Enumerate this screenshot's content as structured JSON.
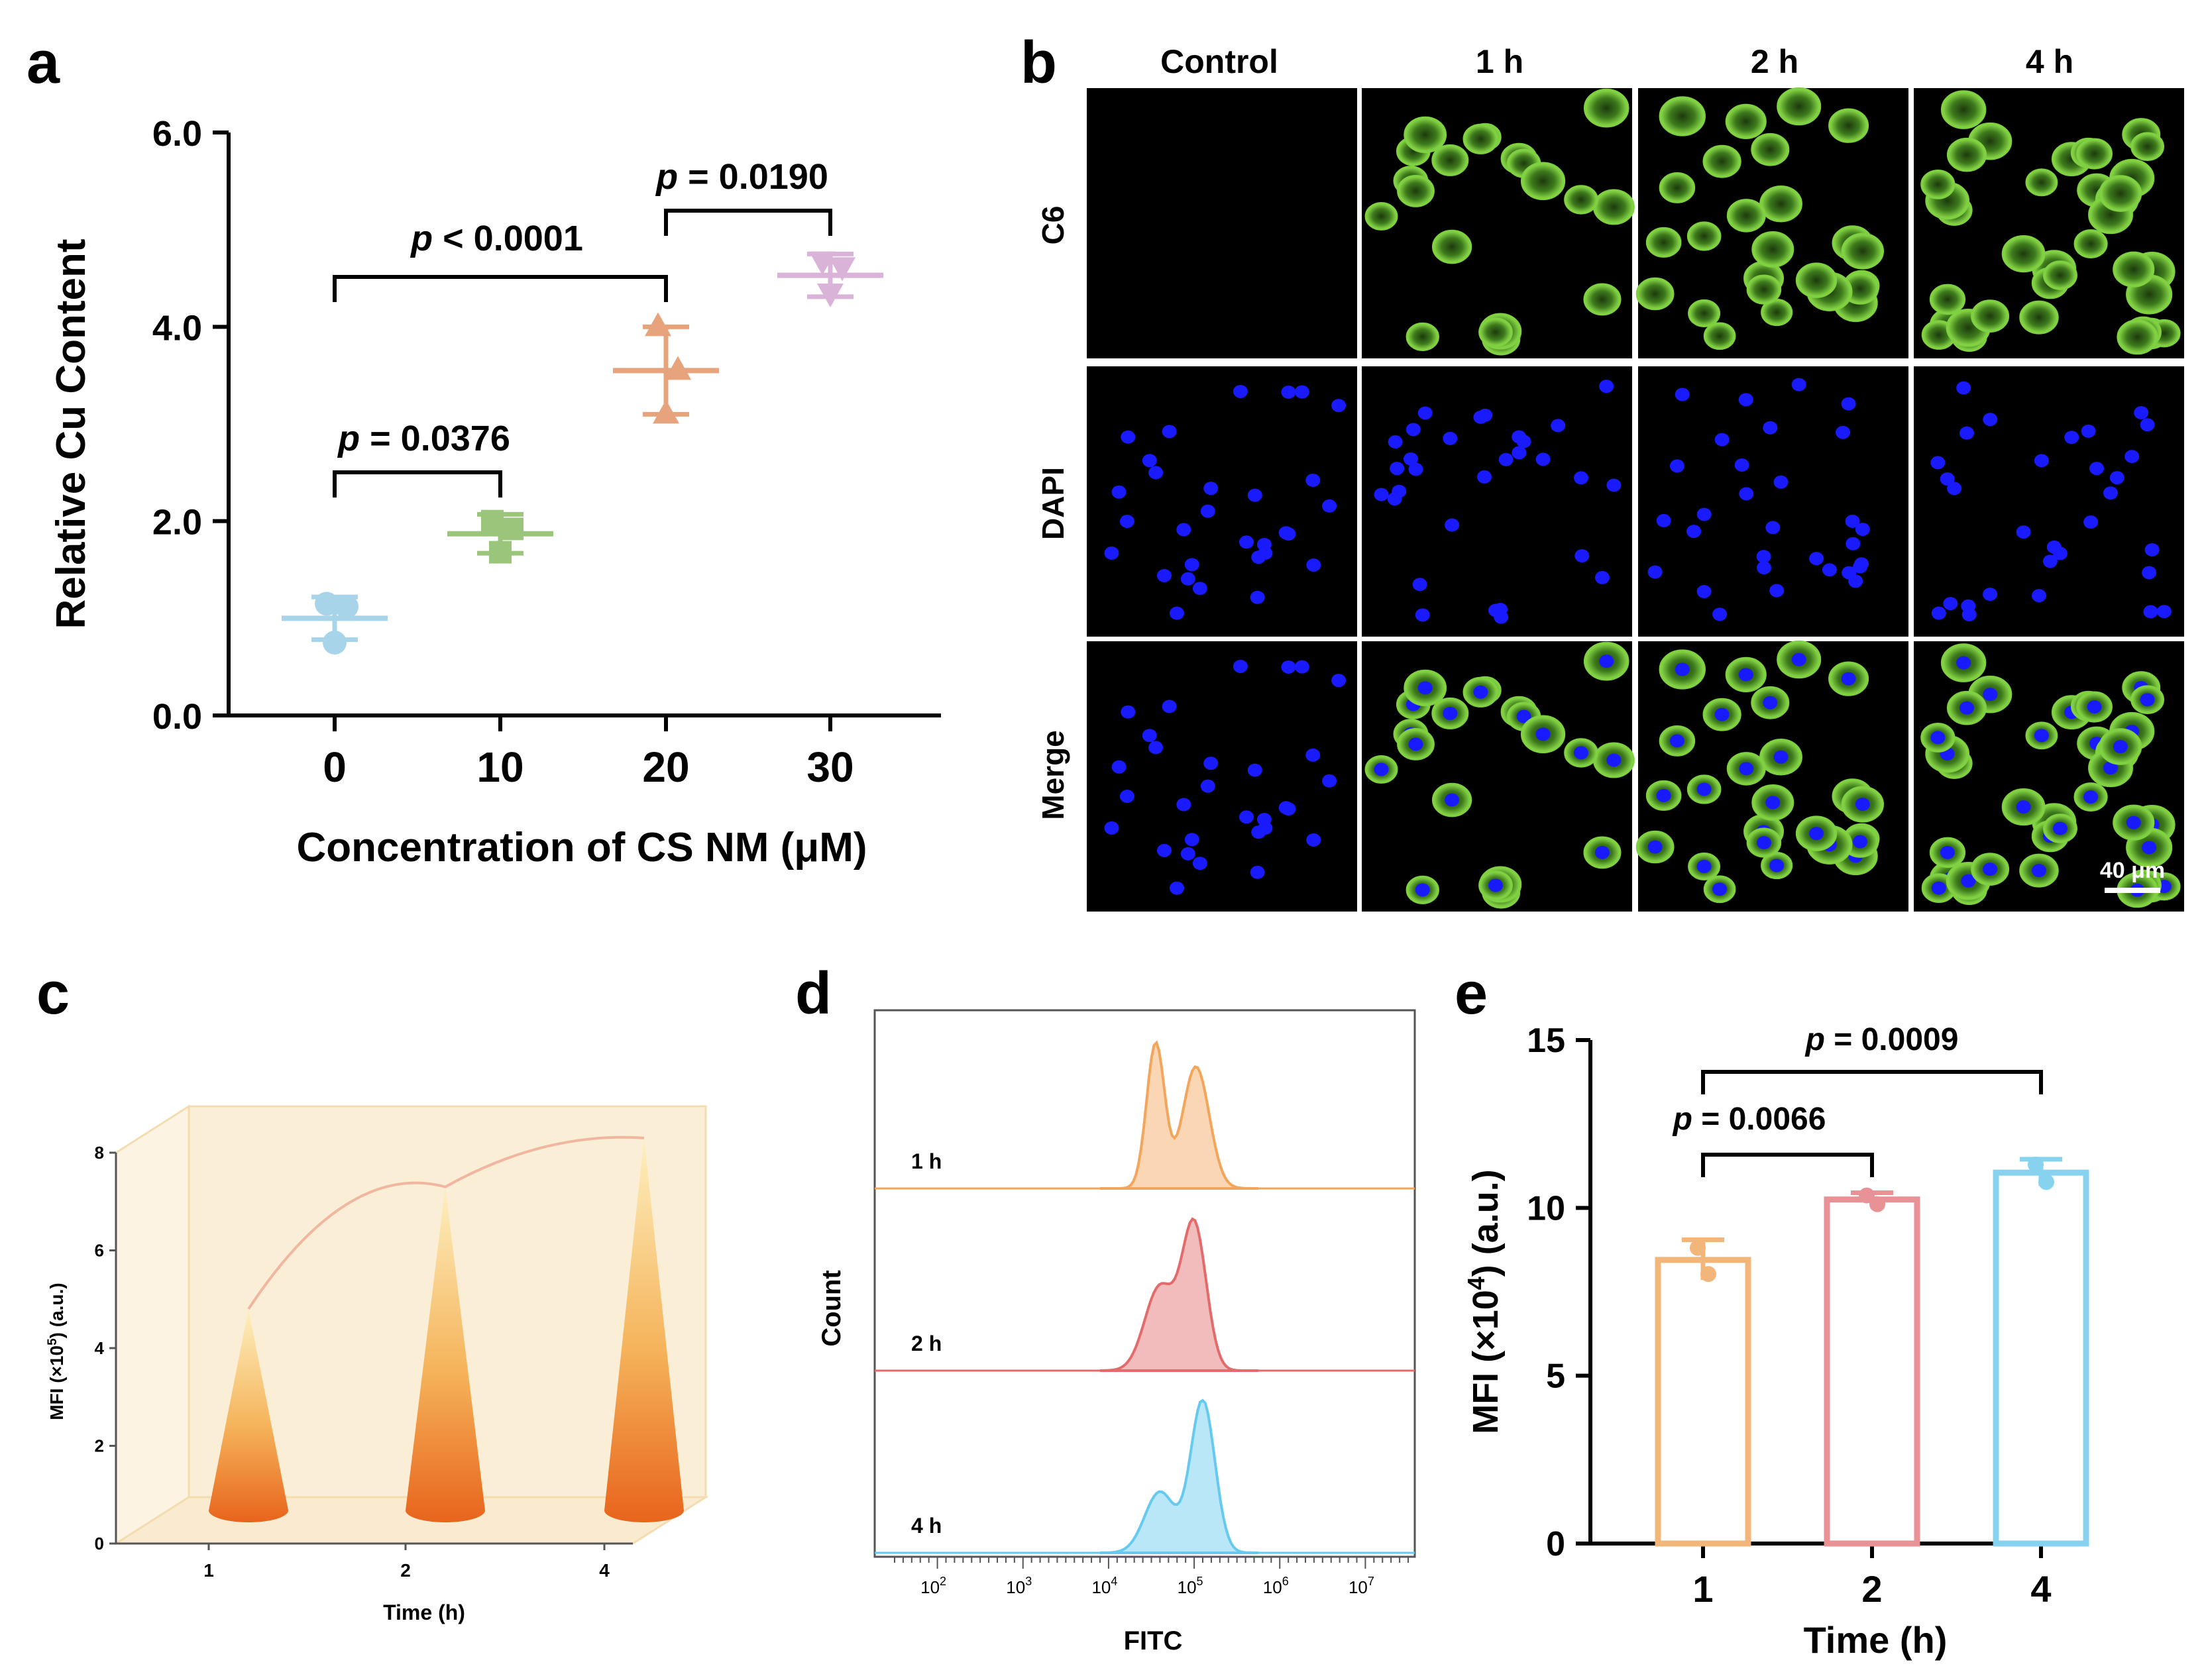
{
  "colors": {
    "c0": "#a8d4ea",
    "c10": "#9ac57a",
    "c20": "#e7a47c",
    "c30": "#d9b3d8",
    "green": "#7fd141",
    "blue": "#1a1aff",
    "h1": "#f3a55c",
    "h2": "#e46b6b",
    "h4": "#66c9ef",
    "e1": "#f2b57a",
    "e2": "#e99295",
    "e4": "#87d2ef",
    "panel_c_bg": "#fbeed7"
  },
  "panel_labels": {
    "a": "a",
    "b": "b",
    "c": "c",
    "d": "d",
    "e": "e"
  },
  "panel_b": {
    "columns": [
      "Control",
      "1 h",
      "2 h",
      "4 h"
    ],
    "rows": [
      "C6",
      "DAPI",
      "Merge"
    ],
    "scale_bar": "40 μm",
    "icon": "fluorescence-micrograph-icon"
  },
  "chart_data": [
    {
      "panel": "a",
      "type": "scatter",
      "title": "",
      "xlabel": "Concentration of CS NM (μM)",
      "ylabel": "Relative Cu Content",
      "categories": [
        "0",
        "10",
        "20",
        "30"
      ],
      "ylim": [
        0,
        6
      ],
      "yticks": [
        "0.0",
        "2.0",
        "4.0",
        "6.0"
      ],
      "series": [
        {
          "name": "0",
          "marker": "circle",
          "mean": 1.0,
          "sd": 0.22,
          "points": [
            1.15,
            0.75,
            1.12
          ]
        },
        {
          "name": "10",
          "marker": "square",
          "mean": 1.87,
          "sd": 0.2,
          "points": [
            2.0,
            1.68,
            1.92
          ]
        },
        {
          "name": "20",
          "marker": "triangle",
          "mean": 3.55,
          "sd": 0.45,
          "points": [
            4.0,
            3.1,
            3.55
          ]
        },
        {
          "name": "30",
          "marker": "triangle-down",
          "mean": 4.53,
          "sd": 0.22,
          "points": [
            4.68,
            4.35,
            4.62
          ]
        }
      ],
      "annotations": [
        {
          "from": "0",
          "to": "10",
          "p_prefix": "p",
          "p_rest": " = 0.0376"
        },
        {
          "from": "0",
          "to": "20",
          "p_prefix": "p",
          "p_rest": " < 0.0001"
        },
        {
          "from": "20",
          "to": "30",
          "p_prefix": "p",
          "p_rest": " = 0.0190"
        }
      ]
    },
    {
      "panel": "c",
      "type": "bar",
      "style": "3d-cone",
      "xlabel": "Time (h)",
      "ylabel_main": "MFI (×10",
      "ylabel_sup": "5",
      "ylabel_tail": ") (a.u.)",
      "categories": [
        "1",
        "2",
        "4"
      ],
      "values": [
        4.8,
        7.3,
        8.3
      ],
      "ylim": [
        0,
        8
      ],
      "yticks": [
        "0",
        "2",
        "4",
        "6",
        "8"
      ]
    },
    {
      "panel": "d",
      "type": "area",
      "style": "flow-cytometry-histogram",
      "xlabel": "FITC",
      "ylabel": "Count",
      "x_tick_base": "10",
      "x_tick_exps": [
        "2",
        "3",
        "4",
        "5",
        "6",
        "7"
      ],
      "series": [
        {
          "name": "1 h",
          "peak_log": 4.85
        },
        {
          "name": "2 h",
          "peak_log": 4.9
        },
        {
          "name": "4 h",
          "peak_log": 5.0
        }
      ]
    },
    {
      "panel": "e",
      "type": "bar",
      "xlabel": "Time (h)",
      "ylabel_main": "MFI (×10",
      "ylabel_sup": "4",
      "ylabel_tail": ") (a.u.)",
      "categories": [
        "1",
        "2",
        "4"
      ],
      "values": [
        8.45,
        10.25,
        11.05
      ],
      "sd": [
        0.6,
        0.2,
        0.4
      ],
      "ylim": [
        0,
        15
      ],
      "yticks": [
        "0",
        "5",
        "10",
        "15"
      ],
      "annotations": [
        {
          "from": "1",
          "to": "2",
          "p_prefix": "p",
          "p_rest": " = 0.0066"
        },
        {
          "from": "1",
          "to": "4",
          "p_prefix": "p",
          "p_rest": " = 0.0009"
        }
      ]
    }
  ]
}
